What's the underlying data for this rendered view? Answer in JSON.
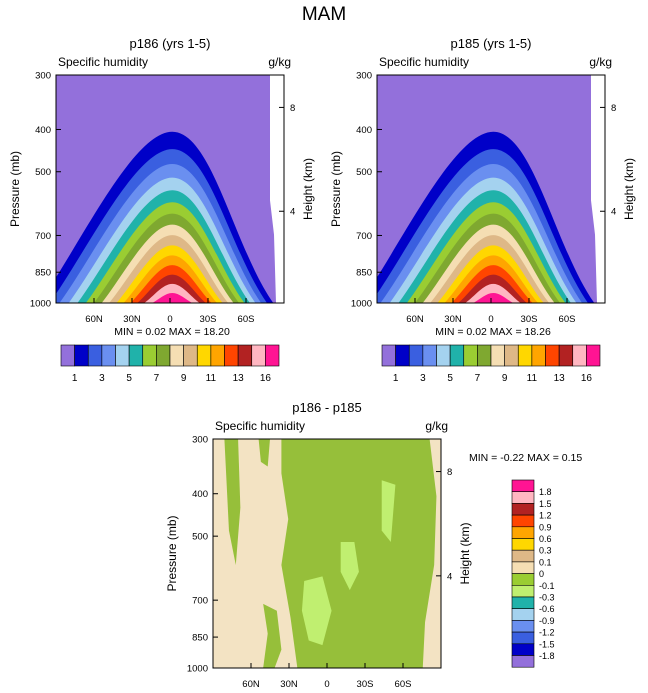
{
  "figure_title": "MAM",
  "chart_data": [
    {
      "type": "heatmap",
      "title": "p186 (yrs 1-5)",
      "left_label": "Specific humidity",
      "units": "g/kg",
      "ylabel": "Pressure (mb)",
      "y2label": "Height (km)",
      "yticks": [
        "300",
        "400",
        "500",
        "700",
        "850",
        "1000"
      ],
      "y2ticks": [
        "8",
        "4"
      ],
      "xticks": [
        "60N",
        "30N",
        "0",
        "30S",
        "60S"
      ],
      "stats": "MIN =  0.02  MAX =  18.20",
      "colorbar_labels": [
        "1",
        "3",
        "5",
        "7",
        "9",
        "11",
        "13",
        "16"
      ]
    },
    {
      "type": "heatmap",
      "title": "p185 (yrs 1-5)",
      "left_label": "Specific humidity",
      "units": "g/kg",
      "ylabel": "Pressure (mb)",
      "y2label": "Height (km)",
      "yticks": [
        "300",
        "400",
        "500",
        "700",
        "850",
        "1000"
      ],
      "y2ticks": [
        "8",
        "4"
      ],
      "xticks": [
        "60N",
        "30N",
        "0",
        "30S",
        "60S"
      ],
      "stats": "MIN =  0.02  MAX =  18.26",
      "colorbar_labels": [
        "1",
        "3",
        "5",
        "7",
        "9",
        "11",
        "13",
        "16"
      ]
    },
    {
      "type": "heatmap",
      "title": "p186 - p185",
      "left_label": "Specific humidity",
      "units": "g/kg",
      "ylabel": "Pressure (mb)",
      "y2label": "Height (km)",
      "yticks": [
        "300",
        "400",
        "500",
        "700",
        "850",
        "1000"
      ],
      "y2ticks": [
        "8",
        "4"
      ],
      "xticks": [
        "60N",
        "30N",
        "0",
        "30S",
        "60S"
      ],
      "stats": "MIN = -0.22  MAX =  0.15",
      "colorbar_labels": [
        "1.8",
        "1.5",
        "1.2",
        "0.9",
        "0.6",
        "0.3",
        "0.1",
        "0",
        "-0.1",
        "-0.3",
        "-0.6",
        "-0.9",
        "-1.2",
        "-1.5",
        "-1.8"
      ]
    }
  ],
  "colors": {
    "full_field": [
      "#9370db",
      "#0000c8",
      "#3a5fe0",
      "#6a8ff0",
      "#a4d2ef",
      "#20b2aa",
      "#9acd32",
      "#7fa830",
      "#f5deb3",
      "#deb887",
      "#ffd700",
      "#ffa500",
      "#ff4500",
      "#b22222",
      "#ffb6c1",
      "#ff1493"
    ],
    "diff_field": [
      "#ff1493",
      "#ffb6c1",
      "#b22222",
      "#ff4500",
      "#ffa500",
      "#ffd700",
      "#deb887",
      "#f5deb3",
      "#9acd32",
      "#c0ef70",
      "#20b2aa",
      "#a4d2ef",
      "#6a8ff0",
      "#3a5fe0",
      "#0000c8",
      "#9370db"
    ],
    "diff_background": "#f3e3c3",
    "diff_green": "#96bf3a",
    "diff_light_green": "#c0ef70"
  }
}
